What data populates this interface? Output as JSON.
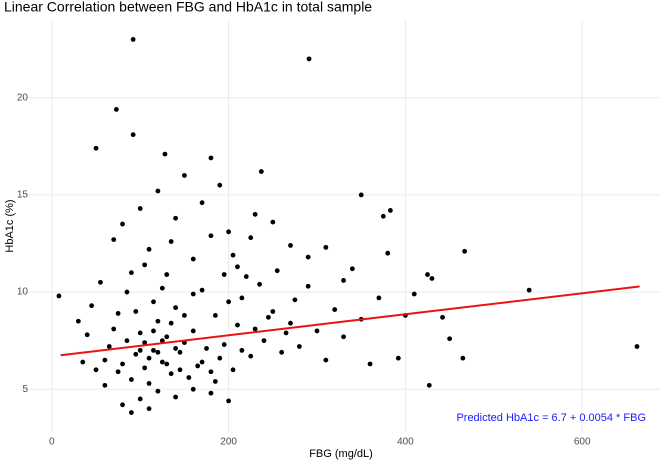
{
  "chart_data": {
    "type": "scatter",
    "title": "Linear Correlation between FBG and HbA1c in total sample",
    "x_label": "FBG (mg/dL)",
    "y_label": "HbA1c (%)",
    "annotation": "Predicted HbA1c = 6.7 + 0.0054 * FBG",
    "annotation_color": "#1a1aff",
    "color": "#000000",
    "x": [
      92,
      291,
      73,
      92,
      50,
      128,
      180,
      237,
      350,
      383,
      375,
      467,
      540,
      662,
      427,
      465,
      442,
      392,
      8,
      425,
      430,
      410,
      450,
      400,
      60,
      65,
      70,
      75,
      80,
      85,
      90,
      95,
      100,
      105,
      110,
      115,
      120,
      125,
      130,
      135,
      140,
      145,
      150,
      155,
      160,
      165,
      170,
      175,
      180,
      185,
      190,
      195,
      200,
      205,
      210,
      215,
      220,
      225,
      230,
      240,
      250,
      260,
      270,
      280,
      290,
      300,
      310,
      320,
      330,
      340,
      350,
      360,
      370,
      380,
      70,
      80,
      90,
      100,
      110,
      120,
      130,
      140,
      150,
      160,
      170,
      180,
      190,
      200,
      210,
      230,
      250,
      270,
      290,
      310,
      330,
      80,
      90,
      100,
      110,
      120,
      140,
      160,
      180,
      200,
      60,
      50,
      40,
      30,
      35,
      45,
      55,
      100,
      105,
      110,
      115,
      120,
      125,
      130,
      135,
      140,
      145,
      150,
      115,
      125,
      105,
      135,
      95,
      85,
      75,
      160,
      170,
      185,
      195,
      205,
      215,
      225,
      235,
      245,
      255,
      265,
      275
    ],
    "values": [
      23,
      22,
      19.4,
      18.1,
      17.4,
      17.1,
      16.9,
      16.2,
      15,
      14.2,
      13.9,
      12.1,
      10.1,
      7.2,
      5.2,
      6.6,
      8.7,
      6.6,
      9.8,
      10.9,
      10.7,
      9.9,
      7.6,
      8.8,
      6.5,
      7.2,
      8.1,
      5.9,
      6.3,
      7.5,
      5.5,
      6.8,
      7.9,
      6.1,
      5.3,
      7.0,
      8.5,
      6.4,
      7.7,
      5.8,
      9.2,
      6.9,
      7.4,
      5.6,
      8.0,
      6.2,
      10.1,
      7.1,
      5.9,
      8.8,
      6.6,
      7.3,
      9.5,
      6.0,
      8.3,
      7.0,
      10.8,
      6.7,
      8.1,
      7.5,
      9.0,
      6.9,
      8.4,
      7.2,
      10.3,
      8.0,
      6.5,
      9.1,
      7.7,
      11.2,
      8.6,
      6.3,
      9.7,
      12.0,
      12.7,
      13.5,
      11.0,
      14.3,
      12.2,
      15.2,
      10.9,
      13.8,
      16.0,
      11.7,
      14.6,
      12.9,
      15.5,
      13.1,
      11.3,
      14.0,
      13.6,
      12.4,
      11.8,
      12.3,
      10.6,
      4.2,
      3.8,
      4.5,
      4.0,
      4.9,
      4.6,
      5.0,
      4.8,
      4.4,
      5.2,
      6.0,
      7.8,
      8.5,
      6.4,
      9.3,
      10.5,
      7.0,
      7.4,
      6.6,
      8.0,
      6.9,
      7.5,
      6.3,
      8.4,
      7.1,
      6.0,
      8.8,
      9.5,
      10.2,
      11.4,
      12.6,
      9.0,
      10.0,
      8.9,
      9.9,
      6.4,
      5.4,
      10.9,
      11.9,
      9.7,
      12.8,
      10.4,
      8.7,
      11.1,
      7.9,
      9.6
    ],
    "fit": {
      "x": [
        10,
        665
      ],
      "values": [
        6.75,
        10.29
      ],
      "color": "#ee1111"
    },
    "xlim": [
      -36,
      688
    ],
    "ylim": [
      2.8,
      24
    ],
    "xticks": [
      0,
      200,
      400,
      600
    ],
    "yticks": [
      5,
      10,
      15,
      20
    ],
    "grid": true
  }
}
